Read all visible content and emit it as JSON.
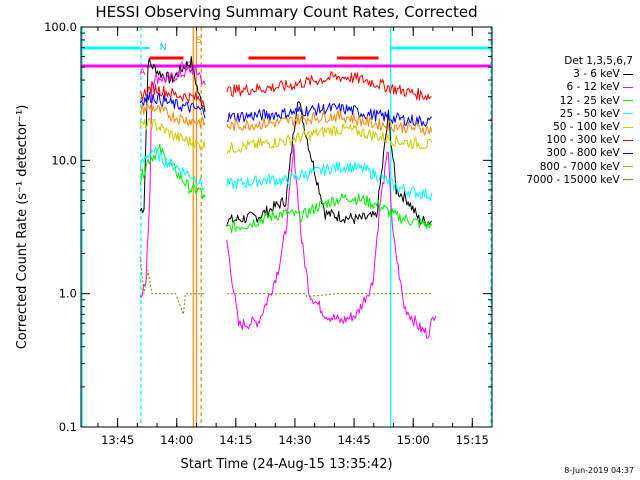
{
  "chart_data": {
    "type": "line",
    "title": "HESSI Observing Summary Count Rates, Corrected",
    "xlabel": "Start Time (24-Aug-15 13:35:42)",
    "ylabel": "Corrected Count Rate (s⁻¹ detector⁻¹)",
    "yscale": "log",
    "ylim": [
      0.1,
      100
    ],
    "xlim_minutes_from_start": [
      0,
      104.3
    ],
    "yticks": [
      "100.0",
      "10.0",
      "1.0",
      "0.1"
    ],
    "xticks": [
      "13:45",
      "14:00",
      "14:15",
      "14:30",
      "14:45",
      "15:00",
      "15:15"
    ],
    "legend_title": "Det 1,3,5,6,7",
    "series": [
      {
        "name": "3 - 6 keV",
        "color": "#000000",
        "points": [
          [
            15,
            4.2
          ],
          [
            16,
            4.5
          ],
          [
            17,
            55
          ],
          [
            20,
            45
          ],
          [
            23,
            40
          ],
          [
            26,
            50
          ],
          [
            28,
            55
          ],
          [
            30,
            30
          ],
          [
            31.5,
            25
          ],
          [
            37,
            3.5
          ],
          [
            45,
            3.8
          ],
          [
            52,
            5
          ],
          [
            55,
            30
          ],
          [
            58,
            12
          ],
          [
            62,
            4
          ],
          [
            70,
            3.6
          ],
          [
            75,
            3.8
          ],
          [
            78,
            22
          ],
          [
            80,
            6
          ],
          [
            83,
            5
          ],
          [
            86,
            3.5
          ],
          [
            89,
            3.5
          ]
        ]
      },
      {
        "name": "6 - 12 keV",
        "color": "#ff00ff",
        "points": [
          [
            15,
            1.0
          ],
          [
            16.5,
            1.2
          ],
          [
            17.5,
            6
          ],
          [
            18,
            40
          ],
          [
            20,
            42
          ],
          [
            22,
            40
          ],
          [
            24,
            43
          ],
          [
            26,
            45
          ],
          [
            28,
            48
          ],
          [
            30,
            45
          ],
          [
            31.5,
            35
          ],
          [
            40,
            0.58
          ],
          [
            45,
            0.62
          ],
          [
            48,
            1.0
          ],
          [
            50,
            1.5
          ],
          [
            52,
            3
          ],
          [
            54,
            12
          ],
          [
            56,
            2.5
          ],
          [
            58,
            1.0
          ],
          [
            62,
            0.7
          ],
          [
            66,
            0.62
          ],
          [
            70,
            0.7
          ],
          [
            74,
            1.2
          ],
          [
            76,
            5
          ],
          [
            78,
            12
          ],
          [
            79,
            3
          ],
          [
            82,
            0.8
          ],
          [
            86,
            0.55
          ],
          [
            88,
            0.5
          ],
          [
            89,
            0.6
          ],
          [
            90,
            0.75
          ]
        ]
      },
      {
        "name": "12 - 25 keV",
        "color": "#00ee00",
        "points": [
          [
            15,
            7
          ],
          [
            17,
            10
          ],
          [
            20,
            12
          ],
          [
            23,
            9
          ],
          [
            26,
            7
          ],
          [
            28,
            6
          ],
          [
            30,
            6
          ],
          [
            31.5,
            5
          ],
          [
            37,
            3.1
          ],
          [
            42,
            3.3
          ],
          [
            48,
            3.8
          ],
          [
            52,
            4
          ],
          [
            56,
            3.8
          ],
          [
            60,
            4.5
          ],
          [
            64,
            5
          ],
          [
            68,
            5.3
          ],
          [
            72,
            5
          ],
          [
            76,
            4.5
          ],
          [
            80,
            3.8
          ],
          [
            84,
            3.5
          ],
          [
            89,
            3.2
          ]
        ]
      },
      {
        "name": "25 - 50 keV",
        "color": "#00ffff",
        "points": [
          [
            15,
            9
          ],
          [
            18,
            12
          ],
          [
            21,
            10
          ],
          [
            24,
            9
          ],
          [
            27,
            8
          ],
          [
            30,
            7
          ],
          [
            31.5,
            6
          ],
          [
            37,
            6.6
          ],
          [
            42,
            6.8
          ],
          [
            48,
            7.2
          ],
          [
            52,
            7
          ],
          [
            56,
            7.8
          ],
          [
            60,
            8.2
          ],
          [
            64,
            8.8
          ],
          [
            68,
            9
          ],
          [
            72,
            8.5
          ],
          [
            76,
            7.5
          ],
          [
            80,
            6.3
          ],
          [
            84,
            5.8
          ],
          [
            89,
            5.5
          ]
        ]
      },
      {
        "name": "50 - 100 keV",
        "color": "#cccc00",
        "points": [
          [
            15,
            18
          ],
          [
            18,
            19
          ],
          [
            21,
            17
          ],
          [
            24,
            15
          ],
          [
            27,
            14
          ],
          [
            30,
            13
          ],
          [
            31.5,
            13
          ],
          [
            37,
            12.2
          ],
          [
            42,
            12.8
          ],
          [
            48,
            13.5
          ],
          [
            52,
            14
          ],
          [
            56,
            15
          ],
          [
            60,
            16
          ],
          [
            64,
            17
          ],
          [
            68,
            17
          ],
          [
            72,
            16
          ],
          [
            76,
            15
          ],
          [
            80,
            14
          ],
          [
            84,
            13.5
          ],
          [
            89,
            13
          ]
        ]
      },
      {
        "name": "100 - 300 keV",
        "color": "#ff0000",
        "points": [
          [
            15,
            30
          ],
          [
            18,
            35
          ],
          [
            21,
            33
          ],
          [
            24,
            31
          ],
          [
            27,
            30
          ],
          [
            30,
            29
          ],
          [
            31.5,
            28
          ],
          [
            37,
            33
          ],
          [
            42,
            34
          ],
          [
            48,
            35
          ],
          [
            52,
            36
          ],
          [
            56,
            38
          ],
          [
            60,
            40
          ],
          [
            64,
            42
          ],
          [
            68,
            42
          ],
          [
            72,
            40
          ],
          [
            76,
            37
          ],
          [
            80,
            34
          ],
          [
            84,
            32
          ],
          [
            89,
            30
          ]
        ]
      },
      {
        "name": "300 - 800 keV",
        "color": "#0000ff",
        "points": [
          [
            15,
            28
          ],
          [
            18,
            30
          ],
          [
            21,
            28
          ],
          [
            24,
            26
          ],
          [
            27,
            25
          ],
          [
            30,
            24
          ],
          [
            31.5,
            23
          ],
          [
            37,
            21
          ],
          [
            42,
            21.5
          ],
          [
            48,
            22
          ],
          [
            52,
            22.5
          ],
          [
            56,
            23.5
          ],
          [
            60,
            24
          ],
          [
            64,
            24.5
          ],
          [
            68,
            24
          ],
          [
            72,
            22.5
          ],
          [
            76,
            21.5
          ],
          [
            80,
            20.5
          ],
          [
            84,
            20
          ],
          [
            89,
            19.5
          ]
        ]
      },
      {
        "name": "800 - 7000 keV",
        "color": "#ff8800",
        "points": [
          [
            15,
            24
          ],
          [
            18,
            25
          ],
          [
            21,
            23
          ],
          [
            24,
            21
          ],
          [
            27,
            20
          ],
          [
            30,
            19.5
          ],
          [
            31.5,
            19
          ],
          [
            37,
            18
          ],
          [
            42,
            18.5
          ],
          [
            48,
            19
          ],
          [
            52,
            19.5
          ],
          [
            56,
            20.5
          ],
          [
            60,
            21
          ],
          [
            64,
            21.5
          ],
          [
            68,
            21
          ],
          [
            72,
            19.5
          ],
          [
            76,
            18.5
          ],
          [
            80,
            18
          ],
          [
            84,
            17.5
          ],
          [
            89,
            17
          ]
        ]
      },
      {
        "name": "7000 - 15000 keV",
        "color": "#808000",
        "points": [
          [
            15,
            1.9
          ],
          [
            16,
            1.0
          ],
          [
            17,
            1.5
          ],
          [
            18,
            1.0
          ],
          [
            21,
            1.0
          ],
          [
            24,
            1.0
          ],
          [
            26,
            0.7
          ],
          [
            26.5,
            1.0
          ],
          [
            30,
            1.0
          ],
          [
            31.5,
            1.0
          ],
          [
            38,
            1.0
          ],
          [
            50,
            1.0
          ],
          [
            57,
            1.0
          ],
          [
            57.3,
            0.95
          ],
          [
            65,
            1.0
          ],
          [
            70,
            1.0
          ],
          [
            75,
            1.0
          ],
          [
            80,
            1.0
          ],
          [
            84,
            1.0
          ],
          [
            89,
            1.0
          ]
        ]
      }
    ],
    "flag_markers": [
      "N",
      "S",
      "A",
      "AO"
    ],
    "flag_colors": {
      "night": "#00ffff",
      "saa": "#ff8800",
      "flare": "#ff0000",
      "attenuator": "#ff00ff"
    }
  },
  "footer": {
    "timestamp": "8-Jun-2019 04:37"
  }
}
